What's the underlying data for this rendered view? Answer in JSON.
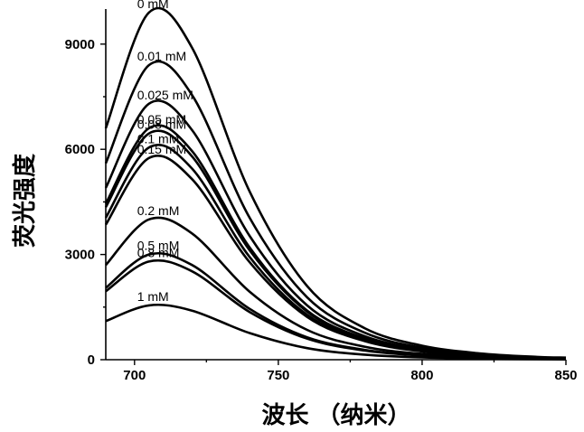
{
  "chart_data": {
    "type": "line",
    "xlabel": "波长 （纳米）",
    "ylabel": "荧光强度",
    "xlim": [
      690,
      850
    ],
    "ylim": [
      0,
      10000
    ],
    "x_ticks": [
      700,
      750,
      800,
      850
    ],
    "y_ticks": [
      0,
      3000,
      6000,
      9000
    ],
    "grid": false,
    "legend": "none",
    "peak_wavelength": 705,
    "series": [
      {
        "name": "0 mM",
        "x": [
          690,
          705,
          720,
          740,
          760,
          780,
          800,
          820,
          840,
          850
        ],
        "y": [
          6600,
          9900,
          8900,
          4800,
          2100,
          900,
          400,
          180,
          80,
          60
        ]
      },
      {
        "name": "0.01 mM",
        "x": [
          690,
          705,
          720,
          740,
          760,
          780,
          800,
          820,
          840,
          850
        ],
        "y": [
          5600,
          8400,
          7550,
          4050,
          1780,
          770,
          340,
          150,
          70,
          50
        ]
      },
      {
        "name": "0.025 mM",
        "x": [
          690,
          705,
          720,
          740,
          760,
          780,
          800,
          820,
          840,
          850
        ],
        "y": [
          4900,
          7300,
          6550,
          3530,
          1550,
          670,
          300,
          130,
          60,
          45
        ]
      },
      {
        "name": "0.05 mM",
        "x": [
          690,
          705,
          720,
          740,
          760,
          780,
          800,
          820,
          840,
          850
        ],
        "y": [
          4450,
          6600,
          5950,
          3200,
          1400,
          610,
          270,
          120,
          55,
          40
        ]
      },
      {
        "name": "0.08 mM",
        "x": [
          690,
          705,
          720,
          740,
          760,
          780,
          800,
          820,
          840,
          850
        ],
        "y": [
          4350,
          6450,
          5800,
          3120,
          1370,
          590,
          260,
          115,
          52,
          38
        ]
      },
      {
        "name": "0.1 mM",
        "x": [
          690,
          705,
          720,
          740,
          760,
          780,
          800,
          820,
          840,
          850
        ],
        "y": [
          4050,
          6050,
          5450,
          2930,
          1280,
          560,
          250,
          110,
          50,
          36
        ]
      },
      {
        "name": "0.15 mM",
        "x": [
          690,
          705,
          720,
          740,
          760,
          780,
          800,
          820,
          840,
          850
        ],
        "y": [
          3850,
          5750,
          5150,
          2780,
          1220,
          530,
          235,
          105,
          48,
          34
        ]
      },
      {
        "name": "0.2 mM",
        "x": [
          690,
          705,
          720,
          740,
          760,
          780,
          800,
          820,
          840,
          850
        ],
        "y": [
          2700,
          4000,
          3600,
          1940,
          850,
          370,
          165,
          73,
          33,
          24
        ]
      },
      {
        "name": "0.5 mM",
        "x": [
          690,
          705,
          720,
          740,
          760,
          780,
          800,
          820,
          840,
          850
        ],
        "y": [
          2050,
          3000,
          2700,
          1450,
          640,
          280,
          125,
          55,
          25,
          18
        ]
      },
      {
        "name": "0.8 mM",
        "x": [
          690,
          705,
          720,
          740,
          760,
          780,
          800,
          820,
          840,
          850
        ],
        "y": [
          1950,
          2800,
          2520,
          1360,
          600,
          260,
          115,
          51,
          23,
          17
        ]
      },
      {
        "name": "1 mM",
        "x": [
          690,
          705,
          720,
          740,
          760,
          780,
          800,
          820,
          840,
          850
        ],
        "y": [
          1100,
          1550,
          1400,
          760,
          330,
          145,
          64,
          28,
          13,
          9
        ]
      }
    ]
  }
}
